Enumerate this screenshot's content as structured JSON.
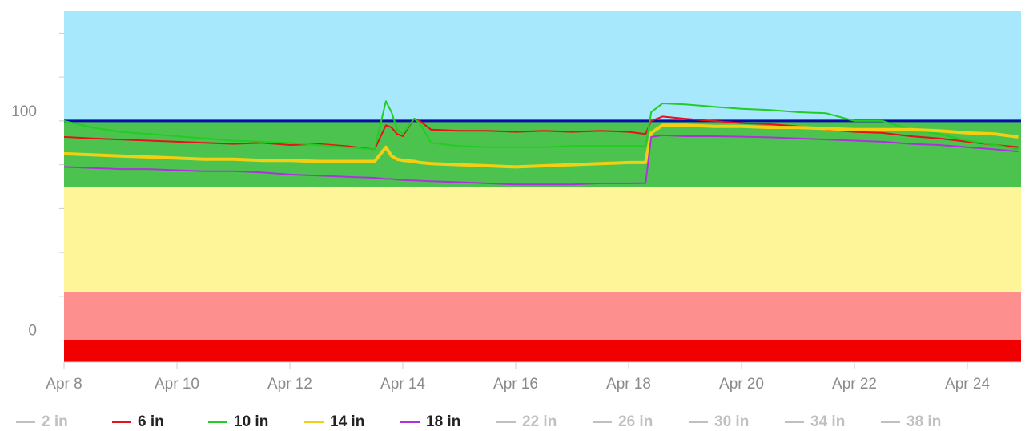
{
  "chart_data": {
    "type": "line",
    "x": [
      8,
      8.5,
      9,
      9.5,
      10,
      10.5,
      11,
      11.5,
      12,
      12.5,
      13,
      13.5,
      13.7,
      13.8,
      13.9,
      14,
      14.2,
      14.3,
      14.5,
      15,
      15.5,
      16,
      16.5,
      17,
      17.5,
      18,
      18.3,
      18.4,
      18.6,
      19,
      19.5,
      20,
      20.5,
      21,
      21.5,
      22,
      22.5,
      23,
      23.5,
      24,
      24.5,
      24.9
    ],
    "xlim": [
      8,
      24.95
    ],
    "xticks": [
      {
        "value": 8,
        "label": "Apr 8"
      },
      {
        "value": 10,
        "label": "Apr 10"
      },
      {
        "value": 12,
        "label": "Apr 12"
      },
      {
        "value": 14,
        "label": "Apr 14"
      },
      {
        "value": 16,
        "label": "Apr 16"
      },
      {
        "value": 18,
        "label": "Apr 18"
      },
      {
        "value": 20,
        "label": "Apr 20"
      },
      {
        "value": 22,
        "label": "Apr 22"
      },
      {
        "value": 24,
        "label": "Apr 24"
      }
    ],
    "ylim": [
      -10,
      150
    ],
    "yticks": [
      0,
      100
    ],
    "minor_yticks": [
      20,
      40,
      60,
      80,
      120,
      140
    ],
    "bands": [
      {
        "from": -10,
        "to": 0,
        "color": "#f00000"
      },
      {
        "from": 0,
        "to": 22,
        "color": "#fd8f8f"
      },
      {
        "from": 22,
        "to": 70,
        "color": "#fdf597"
      },
      {
        "from": 70,
        "to": 100,
        "color": "#4cc34f"
      },
      {
        "from": 100,
        "to": 150,
        "color": "#a7e8fc"
      }
    ],
    "threshold": {
      "value": 100,
      "color": "#0a0aa8"
    },
    "series": [
      {
        "name": "2 in",
        "color": "#c0c0c0",
        "visible": false
      },
      {
        "name": "6 in",
        "color": "#e8101a",
        "visible": true,
        "width": 2,
        "values": [
          92.7,
          92,
          91.5,
          91,
          90.5,
          90,
          89.5,
          90,
          89,
          89.5,
          88.5,
          87,
          98,
          97,
          94,
          93,
          101,
          100,
          96,
          95.5,
          95.5,
          95,
          95.5,
          95,
          95.5,
          95,
          94,
          100,
          102,
          101,
          100,
          99,
          98.5,
          97.5,
          96,
          95,
          94.5,
          93,
          92,
          90.5,
          89,
          88
        ]
      },
      {
        "name": "10 in",
        "color": "#22cc22",
        "visible": true,
        "width": 2,
        "values": [
          100,
          97,
          95,
          94,
          93,
          92,
          91,
          90.5,
          90,
          89,
          88,
          87,
          109,
          104,
          96,
          94,
          101,
          99,
          90,
          88.5,
          88,
          88,
          88,
          88.5,
          88.5,
          88.5,
          88.5,
          104,
          108,
          107.5,
          106.5,
          105.5,
          105,
          104,
          103.5,
          100,
          100,
          96,
          94,
          91,
          89,
          87
        ]
      },
      {
        "name": "14 in",
        "color": "#f2cf12",
        "visible": true,
        "width": 4,
        "values": [
          85,
          84.5,
          84,
          83.5,
          83,
          82.5,
          82.5,
          82,
          82,
          81.5,
          81.5,
          81.5,
          88,
          84,
          82.5,
          82,
          81.5,
          81,
          80.5,
          80,
          79.5,
          79,
          79.5,
          80,
          80.5,
          81,
          81,
          94.5,
          98,
          98,
          97.5,
          97.5,
          97,
          97,
          96.5,
          96,
          96,
          96,
          95.5,
          94.5,
          94,
          92.7
        ]
      },
      {
        "name": "18 in",
        "color": "#b030e0",
        "visible": true,
        "width": 2,
        "values": [
          79,
          78.5,
          78,
          78,
          77.5,
          77,
          77,
          76.5,
          75.5,
          75,
          74.5,
          74,
          73.5,
          73.5,
          73.2,
          73,
          72.8,
          72.7,
          72.5,
          72,
          71.5,
          71,
          71,
          71,
          71.5,
          71.5,
          71.6,
          92.7,
          93.5,
          93,
          93,
          92.8,
          92.5,
          92,
          91.5,
          91,
          90.5,
          89.5,
          89,
          88,
          87,
          86
        ]
      },
      {
        "name": "22 in",
        "color": "#c0c0c0",
        "visible": false
      },
      {
        "name": "26 in",
        "color": "#c0c0c0",
        "visible": false
      },
      {
        "name": "30 in",
        "color": "#c0c0c0",
        "visible": false
      },
      {
        "name": "34 in",
        "color": "#c0c0c0",
        "visible": false
      },
      {
        "name": "38 in",
        "color": "#c0c0c0",
        "visible": false
      }
    ]
  }
}
